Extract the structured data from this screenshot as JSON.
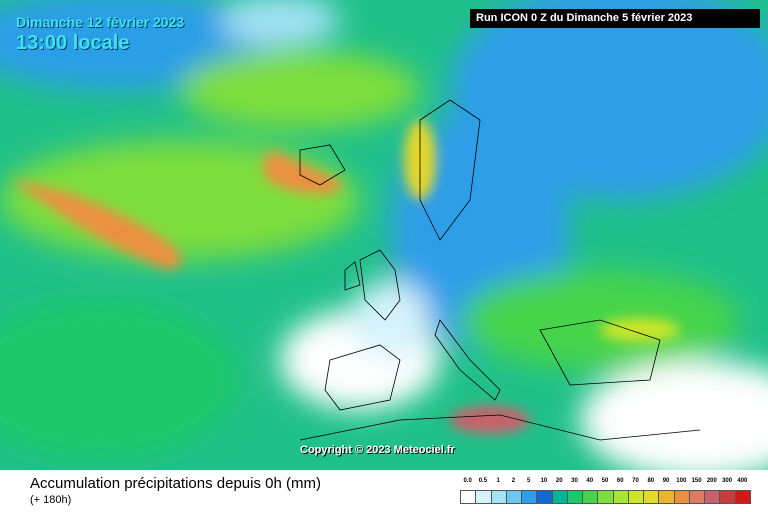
{
  "header": {
    "date": "Dimanche 12 février 2023",
    "time": "13:00 locale",
    "run": "Run ICON 0 Z du Dimanche 5 février 2023"
  },
  "copyright": "Copyright © 2023 Meteociel.fr",
  "caption": {
    "title": "Accumulation précipitations depuis 0h (mm)",
    "subtitle": "(+ 180h)"
  },
  "legend": {
    "labels": [
      "0.0",
      "0.5",
      "1",
      "2",
      "5",
      "10",
      "20",
      "30",
      "40",
      "50",
      "60",
      "70",
      "80",
      "90",
      "100",
      "150",
      "200",
      "300",
      "400"
    ],
    "colors": [
      "#ffffff",
      "#d6f3fb",
      "#a4e2f6",
      "#6cc8f0",
      "#2f9ee8",
      "#1468d6",
      "#00b496",
      "#1ec86a",
      "#46d44c",
      "#7ede3c",
      "#a8e634",
      "#cce62a",
      "#e4d82a",
      "#eab42c",
      "#ec9040",
      "#dc7a66",
      "#c8626a",
      "#c83c3c",
      "#d01818"
    ]
  }
}
